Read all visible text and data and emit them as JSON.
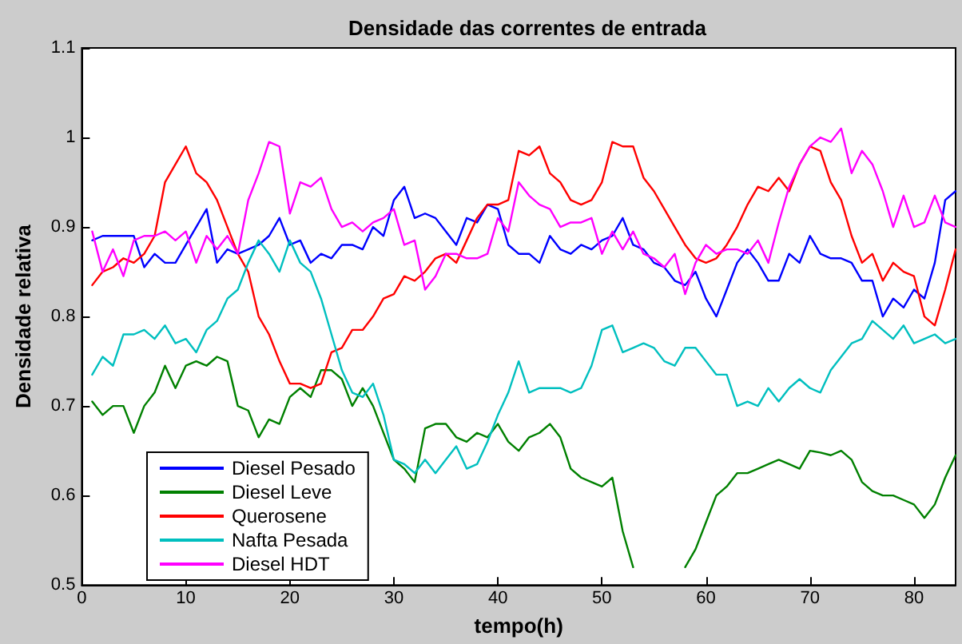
{
  "chart_data": {
    "type": "line",
    "title": "Densidade das correntes de entrada",
    "xlabel": "tempo(h)",
    "ylabel": "Densidade relativa",
    "x": [
      1,
      2,
      3,
      4,
      5,
      6,
      7,
      8,
      9,
      10,
      11,
      12,
      13,
      14,
      15,
      16,
      17,
      18,
      19,
      20,
      21,
      22,
      23,
      24,
      25,
      26,
      27,
      28,
      29,
      30,
      31,
      32,
      33,
      34,
      35,
      36,
      37,
      38,
      39,
      40,
      41,
      42,
      43,
      44,
      45,
      46,
      47,
      48,
      49,
      50,
      51,
      52,
      53,
      54,
      55,
      56,
      57,
      58,
      59,
      60,
      61,
      62,
      63,
      64,
      65,
      66,
      67,
      68,
      69,
      70,
      71,
      72,
      73,
      74,
      75,
      76,
      77,
      78,
      79,
      80,
      81,
      82,
      83,
      84
    ],
    "series": [
      {
        "name": "Diesel Pesado",
        "color": "#0000ff",
        "values": [
          0.885,
          0.89,
          0.89,
          0.89,
          0.89,
          0.855,
          0.87,
          0.86,
          0.86,
          0.88,
          0.9,
          0.92,
          0.86,
          0.875,
          0.87,
          0.875,
          0.88,
          0.89,
          0.91,
          0.88,
          0.885,
          0.86,
          0.87,
          0.865,
          0.88,
          0.88,
          0.875,
          0.9,
          0.89,
          0.93,
          0.945,
          0.91,
          0.915,
          0.91,
          0.895,
          0.88,
          0.91,
          0.905,
          0.925,
          0.92,
          0.88,
          0.87,
          0.87,
          0.86,
          0.89,
          0.875,
          0.87,
          0.88,
          0.875,
          0.885,
          0.89,
          0.91,
          0.88,
          0.875,
          0.86,
          0.855,
          0.84,
          0.835,
          0.85,
          0.82,
          0.8,
          0.83,
          0.86,
          0.875,
          0.86,
          0.84,
          0.84,
          0.87,
          0.86,
          0.89,
          0.87,
          0.865,
          0.865,
          0.86,
          0.84,
          0.84,
          0.8,
          0.82,
          0.81,
          0.83,
          0.82,
          0.86,
          0.93,
          0.94
        ]
      },
      {
        "name": "Diesel Leve",
        "color": "#008000",
        "values": [
          0.705,
          0.69,
          0.7,
          0.7,
          0.67,
          0.7,
          0.715,
          0.745,
          0.72,
          0.745,
          0.75,
          0.745,
          0.755,
          0.75,
          0.7,
          0.695,
          0.665,
          0.685,
          0.68,
          0.71,
          0.72,
          0.71,
          0.74,
          0.74,
          0.73,
          0.7,
          0.72,
          0.7,
          0.67,
          0.64,
          0.63,
          0.615,
          0.675,
          0.68,
          0.68,
          0.665,
          0.66,
          0.67,
          0.665,
          0.68,
          0.66,
          0.65,
          0.665,
          0.67,
          0.68,
          0.665,
          0.63,
          0.62,
          0.615,
          0.61,
          0.62,
          0.56,
          0.52,
          null,
          null,
          null,
          null,
          0.52,
          0.54,
          0.57,
          0.6,
          0.61,
          0.625,
          0.625,
          0.63,
          0.635,
          0.64,
          0.635,
          0.63,
          0.65,
          0.648,
          0.645,
          0.65,
          0.64,
          0.615,
          0.605,
          0.6,
          0.6,
          0.595,
          0.59,
          0.575,
          0.59,
          0.62,
          0.645
        ]
      },
      {
        "name": "Querosene",
        "color": "#ff0000",
        "values": [
          0.835,
          0.85,
          0.855,
          0.865,
          0.86,
          0.87,
          0.89,
          0.95,
          0.97,
          0.99,
          0.96,
          0.95,
          0.93,
          0.9,
          0.87,
          0.85,
          0.8,
          0.78,
          0.75,
          0.725,
          0.725,
          0.72,
          0.725,
          0.76,
          0.765,
          0.785,
          0.785,
          0.8,
          0.82,
          0.825,
          0.845,
          0.84,
          0.85,
          0.865,
          0.87,
          0.86,
          0.885,
          0.91,
          0.925,
          0.925,
          0.93,
          0.985,
          0.98,
          0.99,
          0.96,
          0.95,
          0.93,
          0.925,
          0.93,
          0.95,
          0.995,
          0.99,
          0.99,
          0.955,
          0.94,
          0.92,
          0.9,
          0.88,
          0.865,
          0.86,
          0.865,
          0.88,
          0.9,
          0.925,
          0.945,
          0.94,
          0.955,
          0.94,
          0.97,
          0.99,
          0.985,
          0.95,
          0.93,
          0.89,
          0.86,
          0.87,
          0.84,
          0.86,
          0.85,
          0.845,
          0.8,
          0.79,
          0.83,
          0.875
        ]
      },
      {
        "name": "Nafta Pesada",
        "color": "#00bfbf",
        "values": [
          0.735,
          0.755,
          0.745,
          0.78,
          0.78,
          0.785,
          0.775,
          0.79,
          0.77,
          0.775,
          0.76,
          0.785,
          0.795,
          0.82,
          0.83,
          0.86,
          0.885,
          0.87,
          0.85,
          0.885,
          0.86,
          0.85,
          0.82,
          0.78,
          0.74,
          0.715,
          0.71,
          0.725,
          0.69,
          0.64,
          0.635,
          0.625,
          0.64,
          0.625,
          0.64,
          0.655,
          0.63,
          0.635,
          0.66,
          0.69,
          0.715,
          0.75,
          0.715,
          0.72,
          0.72,
          0.72,
          0.715,
          0.72,
          0.745,
          0.785,
          0.79,
          0.76,
          0.765,
          0.77,
          0.765,
          0.75,
          0.745,
          0.765,
          0.765,
          0.75,
          0.735,
          0.735,
          0.7,
          0.705,
          0.7,
          0.72,
          0.705,
          0.72,
          0.73,
          0.72,
          0.715,
          0.74,
          0.755,
          0.77,
          0.775,
          0.795,
          0.785,
          0.775,
          0.79,
          0.77,
          0.775,
          0.78,
          0.77,
          0.775
        ]
      },
      {
        "name": "Diesel HDT",
        "color": "#ff00ff",
        "values": [
          0.895,
          0.85,
          0.875,
          0.845,
          0.885,
          0.89,
          0.89,
          0.895,
          0.885,
          0.895,
          0.86,
          0.89,
          0.875,
          0.89,
          0.87,
          0.93,
          0.96,
          0.995,
          0.99,
          0.915,
          0.95,
          0.945,
          0.955,
          0.92,
          0.9,
          0.905,
          0.895,
          0.905,
          0.91,
          0.92,
          0.88,
          0.885,
          0.83,
          0.845,
          0.87,
          0.87,
          0.865,
          0.865,
          0.87,
          0.91,
          0.895,
          0.95,
          0.935,
          0.925,
          0.92,
          0.9,
          0.905,
          0.905,
          0.91,
          0.87,
          0.895,
          0.875,
          0.895,
          0.87,
          0.865,
          0.855,
          0.87,
          0.825,
          0.86,
          0.88,
          0.87,
          0.875,
          0.875,
          0.87,
          0.885,
          0.86,
          0.905,
          0.945,
          0.97,
          0.99,
          1.0,
          0.995,
          1.01,
          0.96,
          0.985,
          0.97,
          0.94,
          0.9,
          0.935,
          0.9,
          0.905,
          0.935,
          0.905,
          0.9
        ]
      }
    ],
    "xlim": [
      0,
      84
    ],
    "xticks": [
      0,
      10,
      20,
      30,
      40,
      50,
      60,
      70,
      80
    ],
    "ylim": [
      0.5,
      1.1
    ],
    "yticks": [
      0.5,
      0.6,
      0.7,
      0.8,
      0.9,
      1,
      1.1
    ],
    "grid": false,
    "legend": "bottom left",
    "marker": "none",
    "line_style": "solid"
  }
}
